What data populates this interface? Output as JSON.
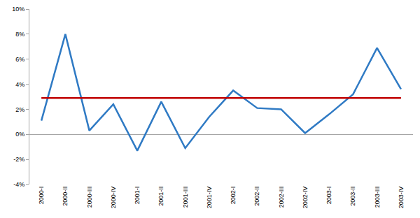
{
  "chart_data": {
    "type": "line",
    "categories": [
      "2000-I",
      "2000-II",
      "2000-III",
      "2000-IV",
      "2001-I",
      "2001-II",
      "2001-III",
      "2001-IV",
      "2002-I",
      "2002-II",
      "2002-III",
      "2002-IV",
      "2003-I",
      "2003-II",
      "2003-III",
      "2003-IV"
    ],
    "series": [
      {
        "color": "#2f7ac4",
        "values": [
          1.1,
          8.0,
          0.3,
          2.4,
          -1.3,
          2.6,
          -1.1,
          1.4,
          3.5,
          2.1,
          2.0,
          0.1,
          1.6,
          3.2,
          6.9,
          3.6
        ]
      },
      {
        "color": "#c00000",
        "values": [
          2.9,
          2.9,
          2.9,
          2.9,
          2.9,
          2.9,
          2.9,
          2.9,
          2.9,
          2.9,
          2.9,
          2.9,
          2.9,
          2.9,
          2.9,
          2.9
        ]
      }
    ],
    "ylim": [
      -4,
      10
    ],
    "yticks": [
      {
        "value": -4,
        "label": "-4%"
      },
      {
        "value": -2,
        "label": "-2%"
      },
      {
        "value": 0,
        "label": "0%"
      },
      {
        "value": 2,
        "label": "2%"
      },
      {
        "value": 4,
        "label": "4%"
      },
      {
        "value": 6,
        "label": "6%"
      },
      {
        "value": 8,
        "label": "8%"
      },
      {
        "value": 10,
        "label": "10%"
      }
    ],
    "grid": false
  }
}
